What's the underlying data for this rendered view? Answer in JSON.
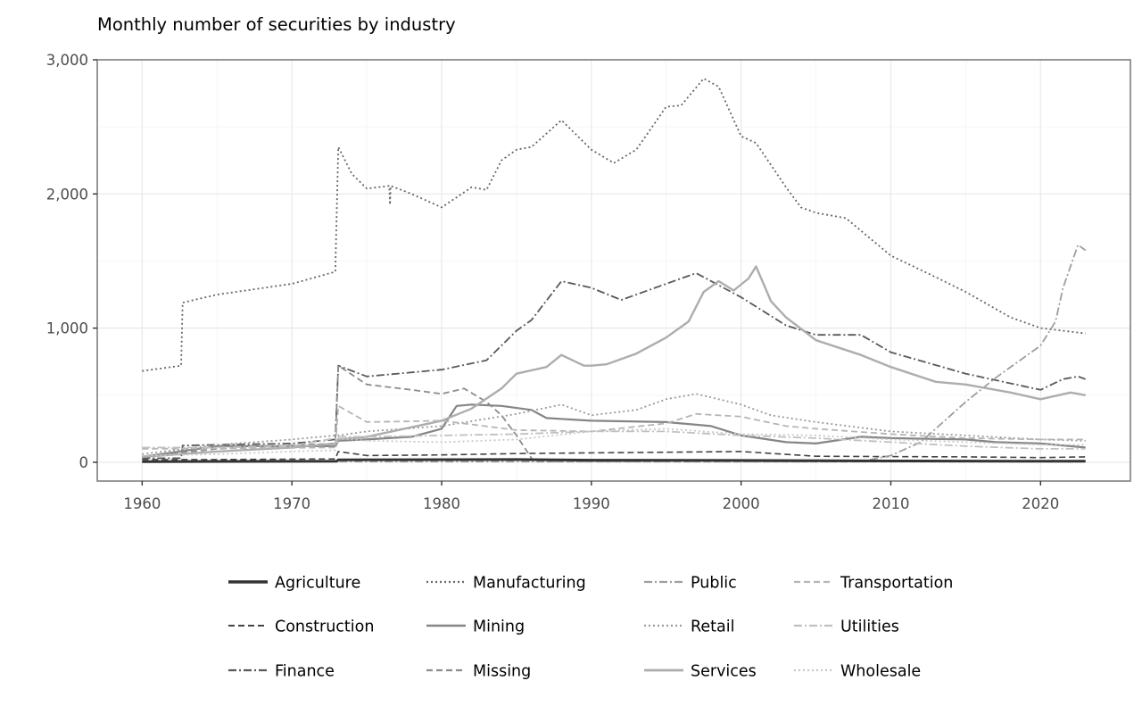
{
  "chart_data": {
    "type": "line",
    "title": "Monthly number of securities by industry",
    "xlabel": "",
    "ylabel": "",
    "xlim": [
      1957,
      2026
    ],
    "ylim": [
      -140,
      3000
    ],
    "x_ticks": [
      1960,
      1970,
      1980,
      1990,
      2000,
      2010,
      2020
    ],
    "x_tick_labels": [
      "1960",
      "1970",
      "1980",
      "1990",
      "2000",
      "2010",
      "2020"
    ],
    "y_ticks": [
      0,
      1000,
      2000,
      3000
    ],
    "y_tick_labels": [
      "0",
      "1,000",
      "2,000",
      "3,000"
    ],
    "grid": true,
    "legend_position": "bottom",
    "series": [
      {
        "name": "Agriculture",
        "color": "#333333",
        "dash": "solid",
        "width": 3,
        "x": [
          1960,
          1973,
          1973.1,
          1985,
          1990,
          2000,
          2010,
          2020,
          2023
        ],
        "y": [
          5,
          8,
          18,
          20,
          16,
          14,
          10,
          8,
          8
        ]
      },
      {
        "name": "Construction",
        "color": "#444444",
        "dash": "dashed",
        "width": 1.6,
        "x": [
          1960,
          1965,
          1972.9,
          1973.1,
          1975,
          1980,
          1985,
          1990,
          1995,
          2000,
          2005,
          2010,
          2015,
          2020,
          2023
        ],
        "y": [
          20,
          20,
          25,
          80,
          50,
          55,
          65,
          70,
          75,
          80,
          45,
          42,
          40,
          35,
          40
        ]
      },
      {
        "name": "Finance",
        "color": "#595959",
        "dash": "dashdot",
        "width": 1.8,
        "x": [
          1960,
          1962.6,
          1962.7,
          1965,
          1970,
          1972.9,
          1973.1,
          1975,
          1980,
          1983,
          1985,
          1986,
          1988,
          1990,
          1992,
          1995,
          1997,
          2000,
          2003,
          2005,
          2008,
          2010,
          2015,
          2020,
          2021.5,
          2022.5,
          2023
        ],
        "y": [
          30,
          30,
          125,
          130,
          140,
          170,
          720,
          640,
          690,
          760,
          980,
          1060,
          1350,
          1300,
          1210,
          1330,
          1410,
          1230,
          1020,
          950,
          950,
          820,
          660,
          540,
          620,
          640,
          620
        ]
      },
      {
        "name": "Manufacturing",
        "color": "#666666",
        "dash": "dotted",
        "width": 1.8,
        "x": [
          1960,
          1962.6,
          1962.7,
          1965,
          1970,
          1972.9,
          1973.1,
          1974,
          1975,
          1976.5,
          1976.55,
          1976.6,
          1978,
          1980,
          1982,
          1983,
          1984,
          1985,
          1986,
          1988,
          1990,
          1991.5,
          1993,
          1995,
          1996,
          1997.5,
          1998.5,
          2000,
          2001,
          2003,
          2004,
          2005,
          2007,
          2010,
          2013,
          2015,
          2018,
          2020,
          2023
        ],
        "y": [
          680,
          720,
          1190,
          1250,
          1330,
          1420,
          2350,
          2150,
          2040,
          2060,
          1920,
          2060,
          2000,
          1900,
          2050,
          2030,
          2250,
          2330,
          2350,
          2550,
          2330,
          2230,
          2330,
          2650,
          2660,
          2860,
          2800,
          2430,
          2380,
          2050,
          1900,
          1860,
          1820,
          1540,
          1380,
          1270,
          1080,
          1000,
          960
        ]
      },
      {
        "name": "Mining",
        "color": "#858585",
        "dash": "solid",
        "width": 2.2,
        "x": [
          1960,
          1965,
          1970,
          1972.9,
          1973.1,
          1975,
          1978,
          1980,
          1981,
          1982,
          1984,
          1986,
          1987,
          1990,
          1995,
          1998,
          2000,
          2003,
          2005,
          2008,
          2010,
          2015,
          2017,
          2020,
          2023
        ],
        "y": [
          40,
          120,
          120,
          120,
          160,
          170,
          190,
          250,
          420,
          430,
          420,
          390,
          330,
          310,
          300,
          270,
          200,
          150,
          140,
          190,
          180,
          170,
          150,
          140,
          110
        ]
      },
      {
        "name": "Missing",
        "color": "#8c8c8c",
        "dash": "dashed",
        "width": 1.8,
        "x": [
          1960,
          1965,
          1972.9,
          1973.1,
          1975,
          1978,
          1980,
          1981.5,
          1983,
          1984,
          1985,
          1986,
          1986.1,
          1990,
          2000,
          2010,
          2023
        ],
        "y": [
          40,
          100,
          140,
          720,
          580,
          540,
          510,
          550,
          450,
          350,
          200,
          30,
          5,
          5,
          5,
          5,
          5
        ]
      },
      {
        "name": "Public",
        "color": "#9e9e9e",
        "dash": "dashdot",
        "width": 1.8,
        "x": [
          1960,
          1970,
          1980,
          1990,
          2000,
          2008,
          2010,
          2012,
          2015,
          2017,
          2020,
          2021,
          2021.5,
          2022.5,
          2023
        ],
        "y": [
          5,
          5,
          5,
          5,
          5,
          5,
          50,
          150,
          450,
          630,
          870,
          1050,
          1300,
          1620,
          1580
        ]
      },
      {
        "name": "Retail",
        "color": "#9a9a9a",
        "dash": "dotted",
        "width": 1.8,
        "x": [
          1960,
          1965,
          1970,
          1972.9,
          1973.1,
          1975,
          1980,
          1985,
          1988,
          1990,
          1993,
          1995,
          1997,
          2000,
          2002,
          2005,
          2010,
          2015,
          2020,
          2023
        ],
        "y": [
          60,
          130,
          170,
          200,
          200,
          230,
          270,
          360,
          430,
          350,
          390,
          470,
          510,
          430,
          350,
          300,
          230,
          200,
          170,
          160
        ]
      },
      {
        "name": "Services",
        "color": "#adadad",
        "dash": "solid",
        "width": 2.4,
        "x": [
          1960,
          1965,
          1970,
          1972.9,
          1973.1,
          1975,
          1980,
          1982,
          1984,
          1985,
          1987,
          1988,
          1989.5,
          1990,
          1991,
          1993,
          1995,
          1996.5,
          1997.5,
          1998.5,
          1999.5,
          2000.5,
          2001,
          2002,
          2003,
          2005,
          2008,
          2010,
          2013,
          2015,
          2018,
          2020,
          2022,
          2023
        ],
        "y": [
          40,
          80,
          110,
          140,
          170,
          190,
          310,
          400,
          550,
          660,
          710,
          800,
          720,
          720,
          730,
          810,
          930,
          1050,
          1270,
          1350,
          1280,
          1370,
          1460,
          1200,
          1080,
          910,
          800,
          710,
          600,
          580,
          520,
          470,
          520,
          500
        ]
      },
      {
        "name": "Transportation",
        "color": "#b5b5b5",
        "dash": "dashed",
        "width": 1.8,
        "x": [
          1960,
          1972.9,
          1973.1,
          1975,
          1980,
          1985,
          1990,
          1995,
          1997,
          2000,
          2003,
          2005,
          2010,
          2015,
          2020,
          2023
        ],
        "y": [
          100,
          110,
          420,
          300,
          310,
          240,
          230,
          290,
          360,
          340,
          270,
          250,
          210,
          180,
          170,
          170
        ]
      },
      {
        "name": "Utilities",
        "color": "#c0c0c0",
        "dash": "dashdot",
        "width": 1.8,
        "x": [
          1960,
          1965,
          1970,
          1972.9,
          1973.1,
          1975,
          1980,
          1985,
          1990,
          1995,
          2000,
          2005,
          2010,
          2015,
          2020,
          2023
        ],
        "y": [
          110,
          110,
          120,
          180,
          190,
          190,
          200,
          210,
          230,
          230,
          200,
          180,
          150,
          120,
          100,
          100
        ]
      },
      {
        "name": "Wholesale",
        "color": "#c8c8c8",
        "dash": "dotted",
        "width": 1.8,
        "x": [
          1960,
          1965,
          1970,
          1972.9,
          1973.1,
          1975,
          1980,
          1985,
          1990,
          1995,
          2000,
          2005,
          2010,
          2015,
          2020,
          2023
        ],
        "y": [
          50,
          60,
          80,
          90,
          180,
          160,
          150,
          170,
          230,
          250,
          210,
          200,
          170,
          150,
          130,
          130
        ]
      }
    ]
  }
}
